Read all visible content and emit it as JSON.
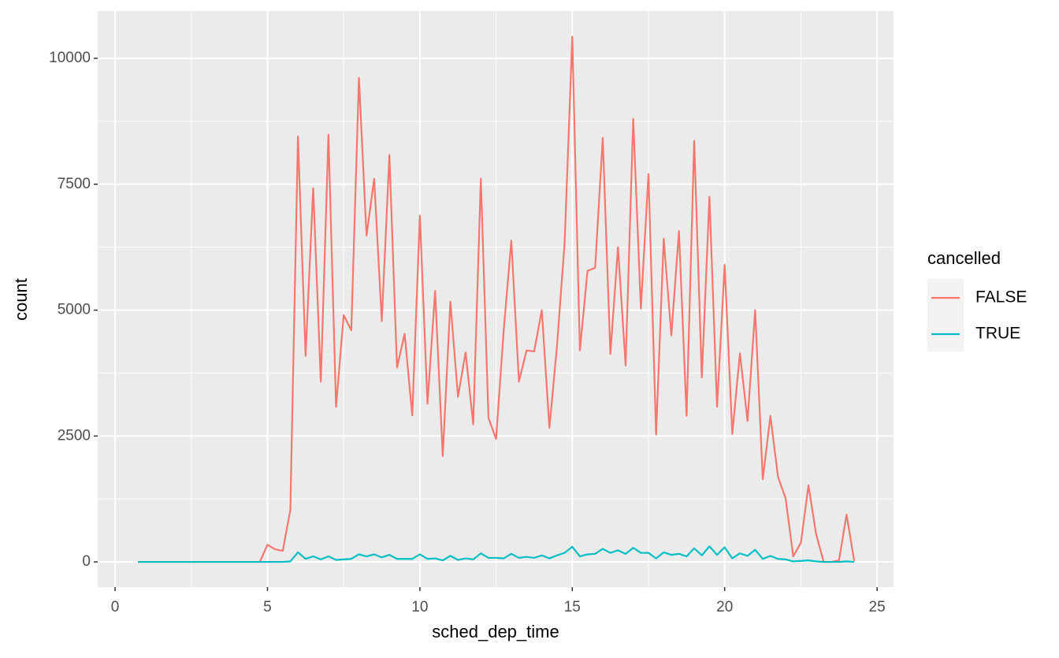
{
  "chart_data": {
    "type": "line",
    "x_label": "sched_dep_time",
    "y_label": "count",
    "legend_title": "cancelled",
    "x": [
      0.75,
      1,
      1.25,
      1.5,
      1.75,
      2,
      2.25,
      2.5,
      2.75,
      3,
      3.25,
      3.5,
      3.75,
      4,
      4.25,
      4.5,
      4.75,
      5,
      5.25,
      5.5,
      5.75,
      6,
      6.25,
      6.5,
      6.75,
      7,
      7.25,
      7.5,
      7.75,
      8,
      8.25,
      8.5,
      8.75,
      9,
      9.25,
      9.5,
      9.75,
      10,
      10.25,
      10.5,
      10.75,
      11,
      11.25,
      11.5,
      11.75,
      12,
      12.25,
      12.5,
      12.75,
      13,
      13.25,
      13.5,
      13.75,
      14,
      14.25,
      14.5,
      14.75,
      15,
      15.25,
      15.5,
      15.75,
      16,
      16.25,
      16.5,
      16.75,
      17,
      17.25,
      17.5,
      17.75,
      18,
      18.25,
      18.5,
      18.75,
      19,
      19.25,
      19.5,
      19.75,
      20,
      20.25,
      20.5,
      20.75,
      21,
      21.25,
      21.5,
      21.75,
      22,
      22.25,
      22.5,
      22.75,
      23,
      23.25,
      23.5,
      23.75,
      24,
      24.25
    ],
    "series": [
      {
        "name": "FALSE",
        "color": "#F8766D",
        "values": [
          0,
          0,
          0,
          0,
          0,
          0,
          0,
          0,
          0,
          0,
          0,
          0,
          0,
          0,
          0,
          0,
          0,
          340,
          250,
          220,
          1030,
          8450,
          4090,
          7420,
          3580,
          8480,
          3080,
          4900,
          4600,
          9610,
          6480,
          7610,
          4780,
          8080,
          3860,
          4530,
          2910,
          6880,
          3140,
          5380,
          2100,
          5170,
          3280,
          4160,
          2730,
          7610,
          2860,
          2440,
          4600,
          6380,
          3580,
          4200,
          4180,
          5000,
          2660,
          4300,
          6350,
          10430,
          4200,
          5780,
          5840,
          8420,
          4130,
          6250,
          3900,
          8800,
          5030,
          7700,
          2530,
          6420,
          4500,
          6570,
          2900,
          8360,
          3660,
          7250,
          3080,
          5900,
          2540,
          4140,
          2800,
          5000,
          1640,
          2900,
          1690,
          1260,
          110,
          380,
          1520,
          550,
          0,
          0,
          30,
          940,
          20
        ]
      },
      {
        "name": "TRUE",
        "color": "#00BFC4",
        "values": [
          0,
          0,
          0,
          0,
          0,
          0,
          0,
          0,
          0,
          0,
          0,
          0,
          0,
          0,
          0,
          0,
          0,
          0,
          0,
          0,
          10,
          190,
          60,
          110,
          50,
          110,
          40,
          50,
          60,
          150,
          110,
          150,
          90,
          140,
          60,
          60,
          60,
          150,
          60,
          70,
          30,
          120,
          40,
          70,
          50,
          170,
          80,
          80,
          70,
          160,
          80,
          100,
          80,
          130,
          70,
          130,
          180,
          300,
          110,
          150,
          160,
          260,
          180,
          230,
          160,
          280,
          180,
          180,
          70,
          190,
          140,
          160,
          110,
          270,
          130,
          310,
          140,
          290,
          70,
          170,
          120,
          240,
          60,
          120,
          60,
          50,
          10,
          20,
          30,
          10,
          0,
          0,
          0,
          10,
          0
        ]
      }
    ],
    "xlim": [
      -0.57,
      25.54
    ],
    "ylim": [
      -500,
      10940
    ],
    "xticks": [
      0,
      5,
      10,
      15,
      20,
      25
    ],
    "yticks": [
      0,
      2500,
      5000,
      7500,
      10000
    ],
    "grid": true,
    "legend_position": "right"
  }
}
